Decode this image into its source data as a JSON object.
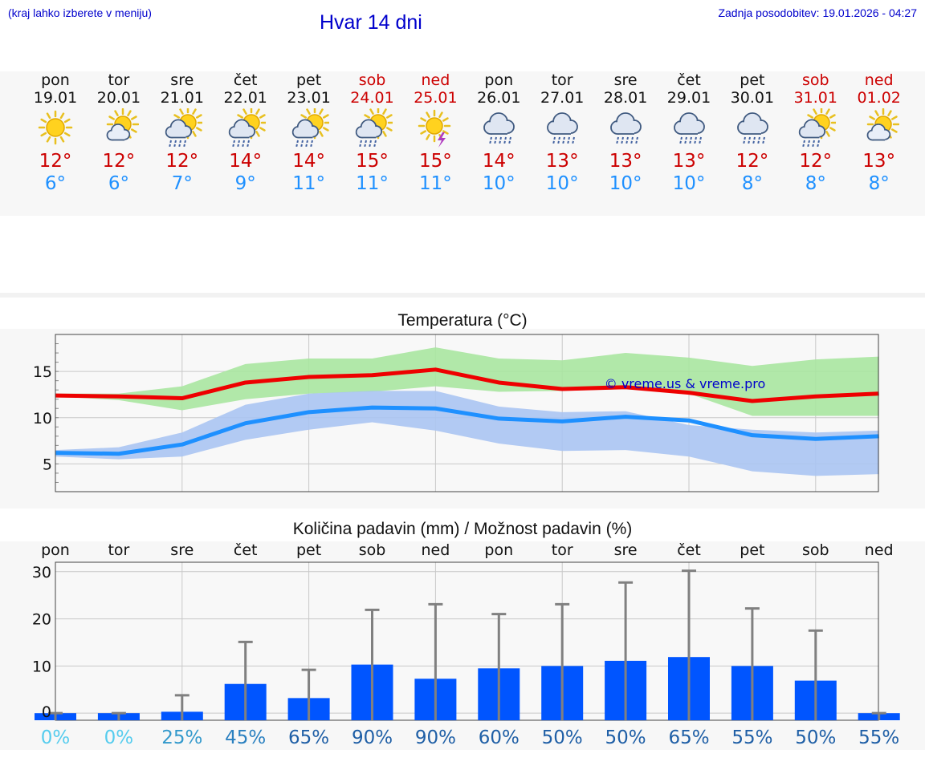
{
  "header": {
    "location_hint": "(kraj lahko izberete v meniju)",
    "title": "Hvar 14 dni",
    "updated": "Zadnja posodobitev: 19.01.2026 - 04:27"
  },
  "forecast": [
    {
      "day": "pon",
      "date": "19.01",
      "max": "12°",
      "min": "6°",
      "icon": "sun-icon",
      "weekend": false
    },
    {
      "day": "tor",
      "date": "20.01",
      "max": "12°",
      "min": "6°",
      "icon": "sun-cloud-icon",
      "weekend": false
    },
    {
      "day": "sre",
      "date": "21.01",
      "max": "12°",
      "min": "7°",
      "icon": "sun-rain-icon",
      "weekend": false
    },
    {
      "day": "čet",
      "date": "22.01",
      "max": "14°",
      "min": "9°",
      "icon": "sun-rain-icon",
      "weekend": false
    },
    {
      "day": "pet",
      "date": "23.01",
      "max": "14°",
      "min": "11°",
      "icon": "sun-rain-icon",
      "weekend": false
    },
    {
      "day": "sob",
      "date": "24.01",
      "max": "15°",
      "min": "11°",
      "icon": "sun-rain-icon",
      "weekend": true
    },
    {
      "day": "ned",
      "date": "25.01",
      "max": "15°",
      "min": "11°",
      "icon": "sun-thunder-icon",
      "weekend": true
    },
    {
      "day": "pon",
      "date": "26.01",
      "max": "14°",
      "min": "10°",
      "icon": "cloud-rain-icon",
      "weekend": false
    },
    {
      "day": "tor",
      "date": "27.01",
      "max": "13°",
      "min": "10°",
      "icon": "cloud-rain-icon",
      "weekend": false
    },
    {
      "day": "sre",
      "date": "28.01",
      "max": "13°",
      "min": "10°",
      "icon": "cloud-rain-icon",
      "weekend": false
    },
    {
      "day": "čet",
      "date": "29.01",
      "max": "13°",
      "min": "10°",
      "icon": "cloud-rain-icon",
      "weekend": false
    },
    {
      "day": "pet",
      "date": "30.01",
      "max": "12°",
      "min": "8°",
      "icon": "cloud-rain-icon",
      "weekend": false
    },
    {
      "day": "sob",
      "date": "31.01",
      "max": "12°",
      "min": "8°",
      "icon": "sun-rain-icon",
      "weekend": true
    },
    {
      "day": "ned",
      "date": "01.02",
      "max": "13°",
      "min": "8°",
      "icon": "sun-cloud-icon",
      "weekend": true
    }
  ],
  "colors": {
    "max": "#cc0000",
    "min": "#1e90ff",
    "weekend": "#cc0000",
    "max_line": "#ee0000",
    "min_line": "#1e90ff",
    "max_band": "#a8e6a0",
    "min_band": "#aac4f2",
    "overlap_band": "#7cc4a6",
    "bar": "#0055ff",
    "errbar": "#808080"
  },
  "chart_data": [
    {
      "type": "line",
      "title": "Temperatura (°C)",
      "watermark": "© vreme.us & vreme.pro",
      "x": [
        0,
        1,
        2,
        3,
        4,
        5,
        6,
        7,
        8,
        9,
        10,
        11,
        12,
        13
      ],
      "ylim": [
        2,
        19
      ],
      "yticks": [
        5,
        10,
        15
      ],
      "series": [
        {
          "name": "max",
          "values": [
            12.4,
            12.3,
            12.1,
            13.8,
            14.4,
            14.6,
            15.2,
            13.8,
            13.1,
            13.3,
            12.7,
            11.8,
            12.3,
            12.6
          ],
          "band_low": [
            12.3,
            11.9,
            10.8,
            12.0,
            12.6,
            12.8,
            13.4,
            12.8,
            12.9,
            13.1,
            12.6,
            10.2,
            10.2,
            10.2
          ],
          "band_high": [
            12.6,
            12.6,
            13.4,
            15.8,
            16.4,
            16.4,
            17.6,
            16.4,
            16.2,
            17.0,
            16.5,
            15.6,
            16.3,
            16.6
          ]
        },
        {
          "name": "min",
          "values": [
            6.2,
            6.1,
            7.1,
            9.4,
            10.6,
            11.1,
            11.0,
            9.9,
            9.6,
            10.1,
            9.7,
            8.1,
            7.7,
            8.0
          ],
          "band_low": [
            5.8,
            5.5,
            5.8,
            7.6,
            8.7,
            9.5,
            8.6,
            7.2,
            6.4,
            6.5,
            5.8,
            4.2,
            3.7,
            3.9
          ],
          "band_high": [
            6.5,
            6.8,
            8.4,
            11.4,
            12.6,
            12.9,
            12.9,
            11.2,
            10.6,
            10.7,
            9.2,
            8.7,
            8.4,
            8.6
          ]
        }
      ]
    },
    {
      "type": "bar",
      "title": "Količina padavin (mm) / Možnost padavin (%)",
      "categories": [
        "pon",
        "tor",
        "sre",
        "čet",
        "pet",
        "sob",
        "ned",
        "pon",
        "tor",
        "sre",
        "čet",
        "pet",
        "sob",
        "ned"
      ],
      "values": [
        0,
        0,
        0.3,
        6.2,
        3.2,
        10.3,
        7.3,
        9.5,
        10.0,
        11.1,
        11.9,
        10.0,
        6.9,
        0
      ],
      "err_high": [
        0,
        0,
        3.8,
        15.1,
        9.2,
        21.9,
        23.1,
        21.0,
        23.1,
        27.7,
        30.2,
        22.2,
        17.5,
        0
      ],
      "probability": [
        "0%",
        "0%",
        "25%",
        "45%",
        "65%",
        "90%",
        "90%",
        "60%",
        "50%",
        "50%",
        "65%",
        "55%",
        "50%",
        "55%"
      ],
      "prob_colors": [
        "#55ccee",
        "#55ccee",
        "#3399cc",
        "#2a80c0",
        "#1f5fa6",
        "#1f5fa6",
        "#1f5fa6",
        "#1f5fa6",
        "#1f5fa6",
        "#1f5fa6",
        "#1f5fa6",
        "#1f5fa6",
        "#1f5fa6",
        "#1f5fa6"
      ],
      "ylim": [
        -1.5,
        32
      ],
      "yticks": [
        0,
        10,
        20,
        30
      ],
      "ylabels": [
        "0",
        "10",
        "20",
        "30"
      ]
    }
  ]
}
